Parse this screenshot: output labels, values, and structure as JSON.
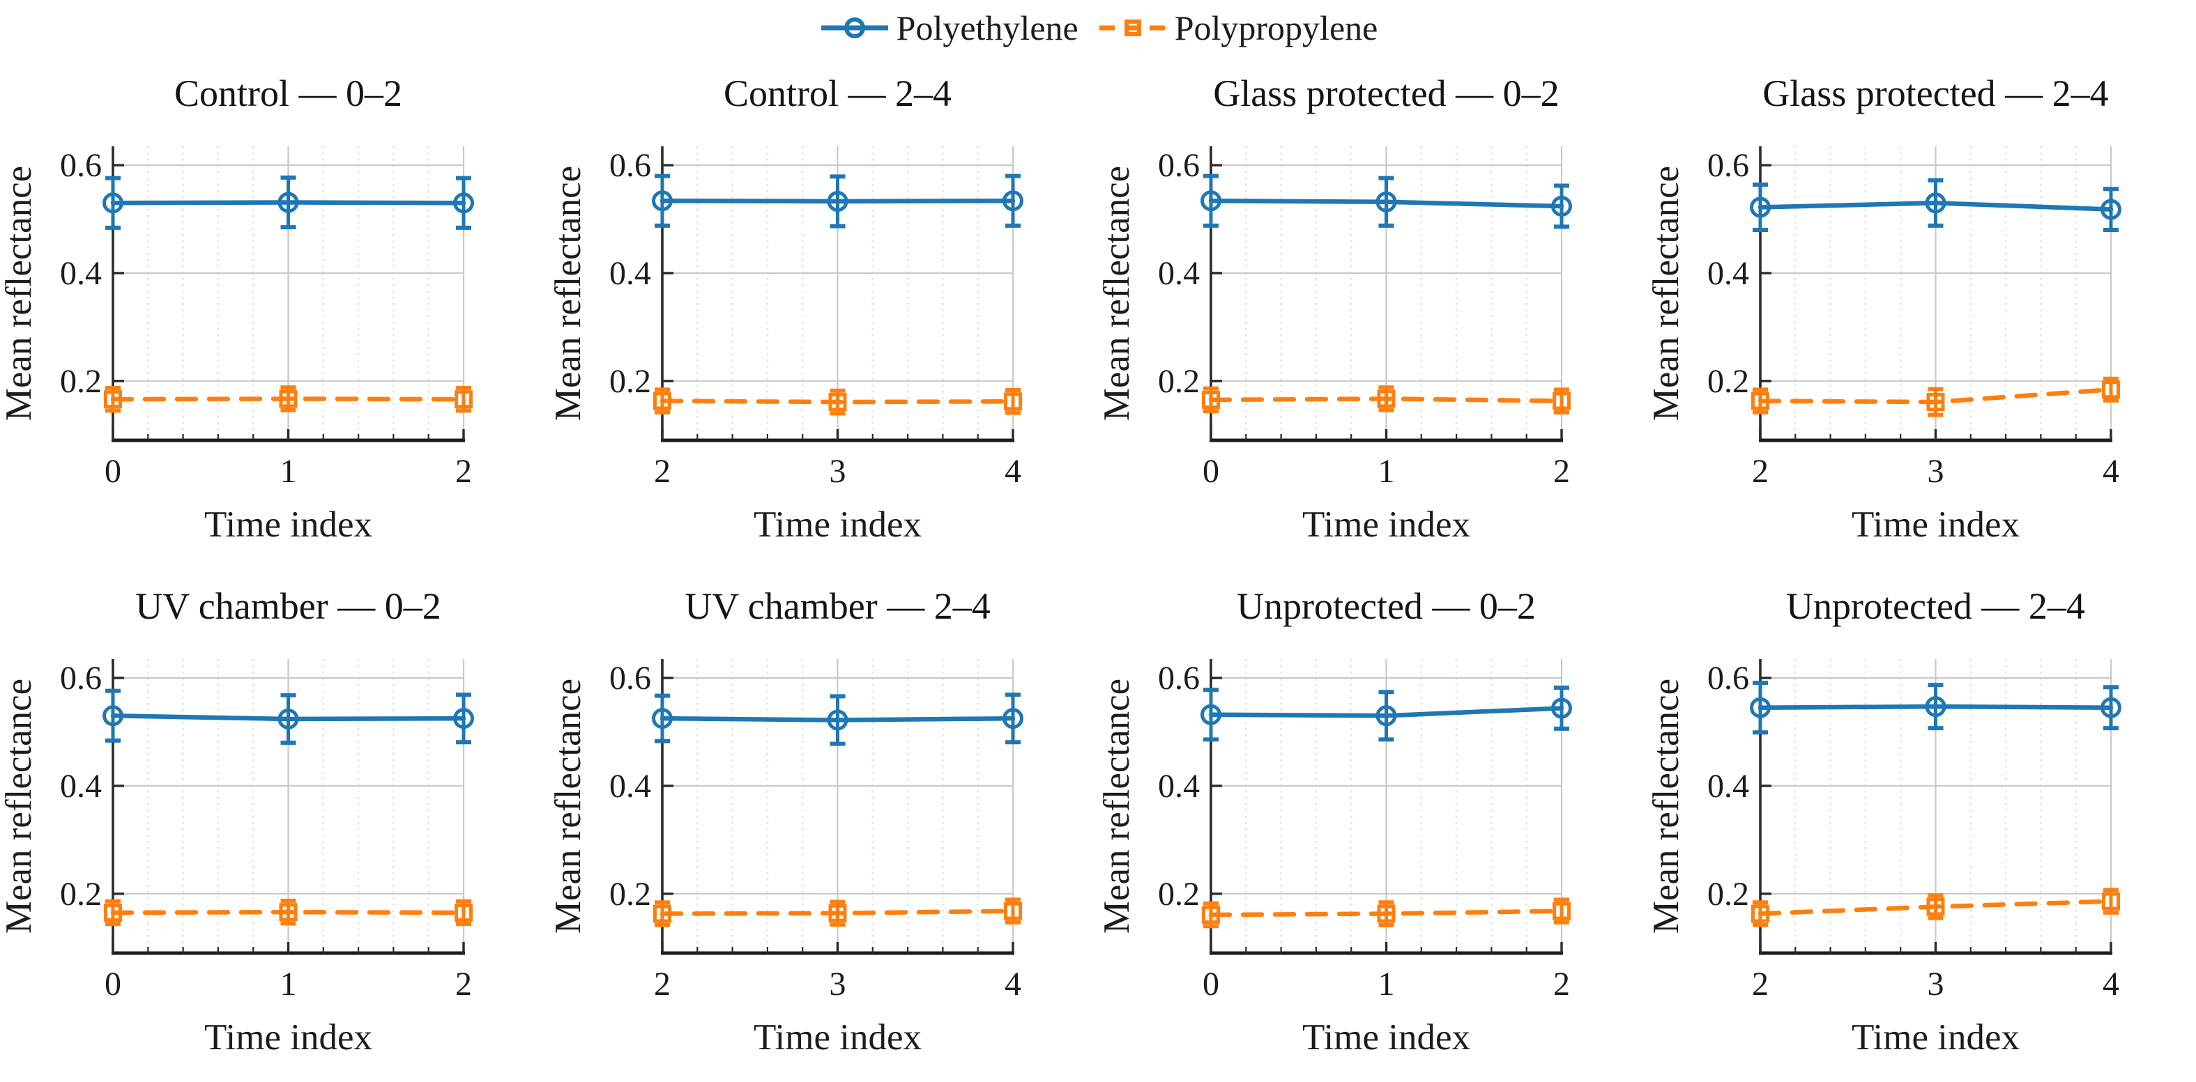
{
  "page": {
    "background": "#ffffff"
  },
  "legend": {
    "items": [
      {
        "label": "Polyethylene",
        "color": "#1f77b4",
        "line": "solid",
        "marker": "circle"
      },
      {
        "label": "Polypropylene",
        "color": "#ff7f0e",
        "line": "dashed",
        "marker": "square"
      }
    ]
  },
  "axes_defaults": {
    "xlabel": "Time index",
    "ylabel": "Mean reflectance",
    "yticks": [
      0.2,
      0.4,
      0.6
    ],
    "ytick_labels": [
      "0.2",
      "0.4",
      "0.6"
    ],
    "ylim": [
      0.09,
      0.635
    ],
    "x_minor_step": 0.2,
    "grid": true,
    "legend_position": "top-center"
  },
  "chart_data": [
    {
      "type": "line",
      "title": "Control — 0–2",
      "x": [
        0,
        1,
        2
      ],
      "xtick_labels": [
        "0",
        "1",
        "2"
      ],
      "series": [
        {
          "name": "Polyethylene",
          "values": [
            0.53,
            0.531,
            0.53
          ],
          "err": [
            0.046,
            0.046,
            0.046
          ]
        },
        {
          "name": "Polypropylene",
          "values": [
            0.166,
            0.167,
            0.166
          ],
          "err": [
            0.021,
            0.021,
            0.021
          ]
        }
      ]
    },
    {
      "type": "line",
      "title": "Control — 2–4",
      "x": [
        2,
        3,
        4
      ],
      "xtick_labels": [
        "2",
        "3",
        "4"
      ],
      "series": [
        {
          "name": "Polyethylene",
          "values": [
            0.534,
            0.533,
            0.534
          ],
          "err": [
            0.046,
            0.046,
            0.046
          ]
        },
        {
          "name": "Polypropylene",
          "values": [
            0.163,
            0.161,
            0.162
          ],
          "err": [
            0.021,
            0.021,
            0.021
          ]
        }
      ]
    },
    {
      "type": "line",
      "title": "Glass protected — 0–2",
      "x": [
        0,
        1,
        2
      ],
      "xtick_labels": [
        "0",
        "1",
        "2"
      ],
      "series": [
        {
          "name": "Polyethylene",
          "values": [
            0.534,
            0.532,
            0.524
          ],
          "err": [
            0.046,
            0.044,
            0.038
          ]
        },
        {
          "name": "Polypropylene",
          "values": [
            0.165,
            0.167,
            0.163
          ],
          "err": [
            0.021,
            0.021,
            0.021
          ]
        }
      ]
    },
    {
      "type": "line",
      "title": "Glass protected — 2–4",
      "x": [
        2,
        3,
        4
      ],
      "xtick_labels": [
        "2",
        "3",
        "4"
      ],
      "series": [
        {
          "name": "Polyethylene",
          "values": [
            0.522,
            0.53,
            0.518
          ],
          "err": [
            0.042,
            0.042,
            0.038
          ]
        },
        {
          "name": "Polypropylene",
          "values": [
            0.163,
            0.161,
            0.184
          ],
          "err": [
            0.021,
            0.024,
            0.02
          ]
        }
      ]
    },
    {
      "type": "line",
      "title": "UV chamber — 0–2",
      "x": [
        0,
        1,
        2
      ],
      "xtick_labels": [
        "0",
        "1",
        "2"
      ],
      "series": [
        {
          "name": "Polyethylene",
          "values": [
            0.53,
            0.524,
            0.525
          ],
          "err": [
            0.046,
            0.044,
            0.044
          ]
        },
        {
          "name": "Polypropylene",
          "values": [
            0.165,
            0.166,
            0.165
          ],
          "err": [
            0.021,
            0.021,
            0.021
          ]
        }
      ]
    },
    {
      "type": "line",
      "title": "UV chamber — 2–4",
      "x": [
        2,
        3,
        4
      ],
      "xtick_labels": [
        "2",
        "3",
        "4"
      ],
      "series": [
        {
          "name": "Polyethylene",
          "values": [
            0.525,
            0.522,
            0.525
          ],
          "err": [
            0.042,
            0.044,
            0.044
          ]
        },
        {
          "name": "Polypropylene",
          "values": [
            0.163,
            0.164,
            0.168
          ],
          "err": [
            0.021,
            0.021,
            0.021
          ]
        }
      ]
    },
    {
      "type": "line",
      "title": "Unprotected — 0–2",
      "x": [
        0,
        1,
        2
      ],
      "xtick_labels": [
        "0",
        "1",
        "2"
      ],
      "series": [
        {
          "name": "Polyethylene",
          "values": [
            0.532,
            0.53,
            0.544
          ],
          "err": [
            0.046,
            0.044,
            0.038
          ]
        },
        {
          "name": "Polypropylene",
          "values": [
            0.161,
            0.163,
            0.168
          ],
          "err": [
            0.021,
            0.021,
            0.021
          ]
        }
      ]
    },
    {
      "type": "line",
      "title": "Unprotected — 2–4",
      "x": [
        2,
        3,
        4
      ],
      "xtick_labels": [
        "2",
        "3",
        "4"
      ],
      "series": [
        {
          "name": "Polyethylene",
          "values": [
            0.545,
            0.547,
            0.545
          ],
          "err": [
            0.046,
            0.04,
            0.038
          ]
        },
        {
          "name": "Polypropylene",
          "values": [
            0.163,
            0.176,
            0.186
          ],
          "err": [
            0.021,
            0.021,
            0.021
          ]
        }
      ]
    }
  ],
  "style": {
    "grid_major_color": "#c9c9c9",
    "grid_minor_color": "#dfdfdf",
    "spine_color": "#2a2a2a",
    "text_color": "#1c1c1c"
  }
}
